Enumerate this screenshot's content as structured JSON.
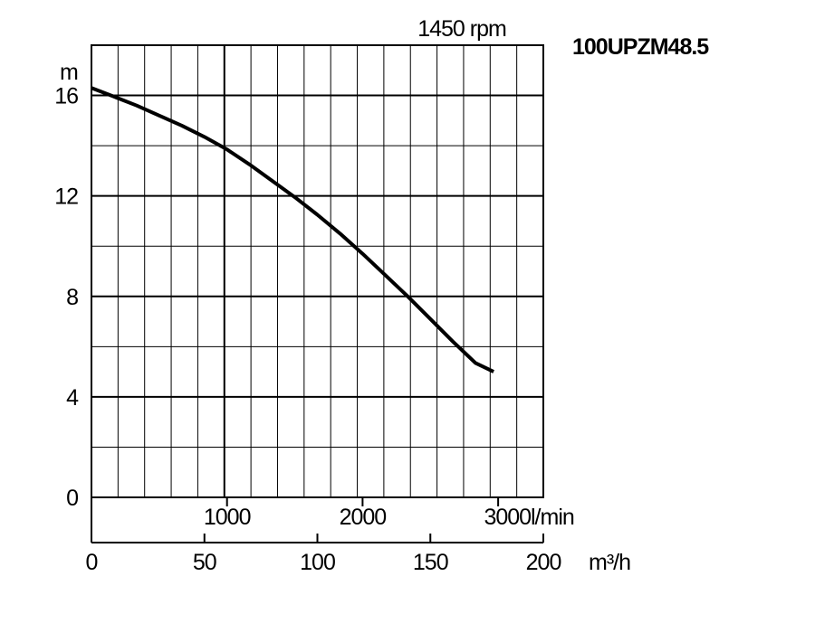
{
  "chart_data": {
    "type": "line",
    "title": "100UPZM48.5",
    "speed_label": "1450 rpm",
    "y_unit": "m",
    "ylim": [
      0,
      18
    ],
    "y_ticks": [
      "0",
      "4",
      "8",
      "12",
      "16"
    ],
    "y_tick_values": [
      0,
      4,
      8,
      12,
      16
    ],
    "x_lmin_unit": "l/min",
    "x_lmin_ticks": [
      "1000",
      "2000",
      "3000"
    ],
    "x_lmin_tick_values": [
      1000,
      2000,
      3000
    ],
    "x_m3h_unit": "m³/h",
    "xlim": [
      0,
      200
    ],
    "x_m3h_ticks": [
      "0",
      "50",
      "100",
      "150",
      "200"
    ],
    "x_m3h_tick_values": [
      0,
      50,
      100,
      150,
      200
    ],
    "grid": true,
    "series": [
      {
        "x": [
          0,
          10,
          20,
          30,
          40,
          50,
          60,
          70,
          80,
          90,
          100,
          110,
          120,
          130,
          140,
          150,
          160,
          170,
          178
        ],
        "y": [
          16.3,
          15.95,
          15.6,
          15.2,
          14.8,
          14.35,
          13.85,
          13.25,
          12.6,
          11.95,
          11.25,
          10.5,
          9.7,
          8.85,
          8.0,
          7.1,
          6.2,
          5.35,
          5.0
        ]
      }
    ]
  }
}
